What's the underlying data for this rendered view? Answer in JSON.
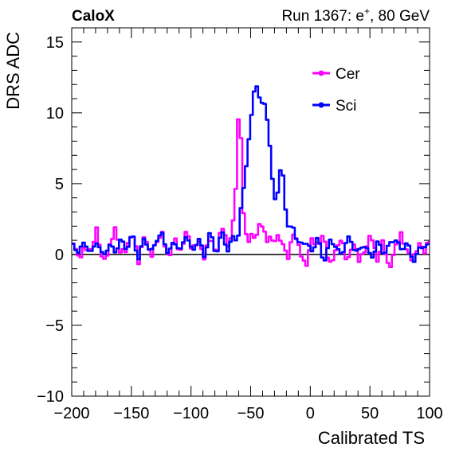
{
  "header": {
    "left_label": "CaloX",
    "right_label_run": "Run 1367: e",
    "right_label_sup": "+",
    "right_label_tail": ", 80 GeV"
  },
  "chart_data": {
    "type": "line",
    "xlabel": "Calibrated TS",
    "ylabel": "DRS ADC",
    "xlim": [
      -200,
      100
    ],
    "ylim": [
      -10,
      16
    ],
    "x_ticks": [
      -200,
      -150,
      -100,
      -50,
      0,
      50,
      100
    ],
    "x_tick_labels": [
      "−200",
      "−150",
      "−100",
      "−50",
      "0",
      "50",
      "100"
    ],
    "y_ticks": [
      -10,
      -5,
      0,
      5,
      10,
      15
    ],
    "y_tick_labels": [
      "−10",
      "−5",
      "0",
      "5",
      "10",
      "15"
    ],
    "zero_line": 0,
    "legend_position": "top-right",
    "grid": false,
    "series": [
      {
        "name": "Cer",
        "color": "#ff00ff",
        "x": [
          -200,
          -195,
          -190,
          -185,
          -180,
          -175,
          -170,
          -165,
          -160,
          -155,
          -150,
          -145,
          -140,
          -135,
          -130,
          -125,
          -120,
          -115,
          -110,
          -105,
          -100,
          -95,
          -90,
          -85,
          -80,
          -75,
          -70,
          -66,
          -63,
          -61,
          -59,
          -57,
          -55,
          -52,
          -50,
          -47,
          -45,
          -42,
          -40,
          -37,
          -35,
          -32,
          -30,
          -25,
          -20,
          -15,
          -10,
          -5,
          0,
          5,
          10,
          15,
          20,
          25,
          30,
          35,
          40,
          45,
          50,
          55,
          60,
          65,
          70,
          75,
          80,
          85,
          90,
          95,
          100
        ],
        "values": [
          0.9,
          -0.3,
          0.5,
          0.2,
          1.8,
          -0.6,
          0.3,
          1.9,
          0.1,
          0.4,
          1.6,
          -0.5,
          1.5,
          -0.2,
          0.9,
          1.5,
          -0.4,
          1.2,
          0.1,
          1.7,
          0.3,
          1.0,
          -0.2,
          1.3,
          0.0,
          2.1,
          0.5,
          2.0,
          5.5,
          10.4,
          8.0,
          3.0,
          1.3,
          1.0,
          1.4,
          1.1,
          1.8,
          2.3,
          1.6,
          0.9,
          1.3,
          0.7,
          1.3,
          1.0,
          -0.3,
          1.6,
          0.4,
          -1.0,
          1.1,
          0.6,
          1.4,
          -0.8,
          0.2,
          1.2,
          -0.6,
          0.9,
          -0.4,
          0.3,
          1.5,
          -0.5,
          1.0,
          -1.2,
          0.5,
          1.4,
          0.2,
          -0.4,
          0.8,
          0.2,
          1.3
        ]
      },
      {
        "name": "Sci",
        "color": "#0000ff",
        "x": [
          -200,
          -195,
          -190,
          -185,
          -180,
          -175,
          -170,
          -165,
          -160,
          -155,
          -150,
          -145,
          -140,
          -135,
          -130,
          -125,
          -120,
          -115,
          -110,
          -105,
          -100,
          -95,
          -90,
          -85,
          -80,
          -75,
          -70,
          -65,
          -62,
          -60,
          -58,
          -56,
          -54,
          -52,
          -50,
          -48,
          -46,
          -44,
          -42,
          -40,
          -38,
          -36,
          -34,
          -32,
          -30,
          -28,
          -26,
          -24,
          -22,
          -20,
          -18,
          -16,
          -14,
          -12,
          -10,
          -5,
          0,
          5,
          10,
          15,
          20,
          25,
          30,
          35,
          40,
          45,
          50,
          55,
          60,
          65,
          70,
          75,
          80,
          85,
          90,
          95,
          100
        ],
        "values": [
          0.6,
          0.2,
          0.9,
          0.0,
          1.0,
          -0.2,
          0.7,
          0.2,
          1.0,
          0.4,
          1.4,
          -0.3,
          1.3,
          0.0,
          1.1,
          1.4,
          0.0,
          1.0,
          0.2,
          1.5,
          0.1,
          1.2,
          -0.1,
          1.6,
          0.0,
          1.6,
          0.2,
          1.5,
          0.8,
          2.5,
          4.0,
          5.5,
          7.0,
          8.5,
          10.0,
          11.8,
          12.0,
          11.0,
          10.5,
          11.0,
          10.3,
          8.5,
          6.5,
          4.5,
          3.9,
          4.5,
          5.9,
          5.6,
          3.5,
          2.0,
          1.6,
          2.3,
          1.5,
          1.0,
          0.6,
          1.0,
          0.1,
          1.3,
          -0.6,
          0.9,
          0.7,
          -0.2,
          1.3,
          0.5,
          0.2,
          0.8,
          -0.4,
          0.9,
          0.1,
          0.6,
          1.2,
          0.3,
          0.9,
          -0.5,
          0.3,
          0.7,
          0.5
        ]
      }
    ]
  }
}
